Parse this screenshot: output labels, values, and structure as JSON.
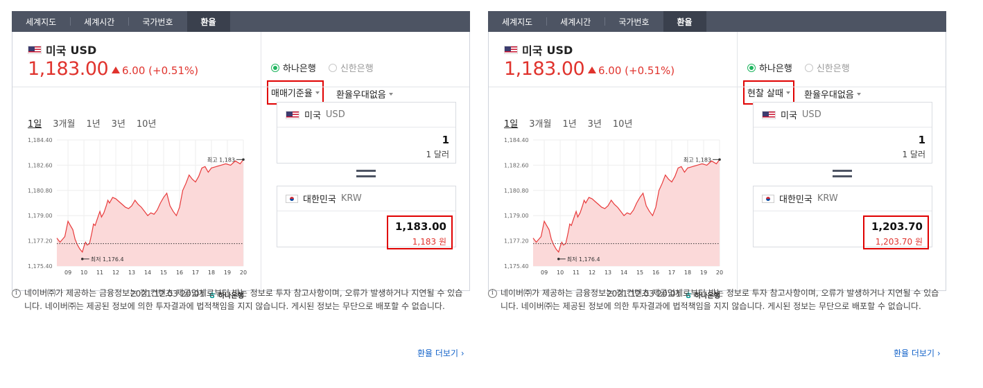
{
  "panels": [
    {
      "tabs": [
        "세계지도",
        "세계시간",
        "국가번호",
        "환율"
      ],
      "currency": {
        "name": "미국",
        "code": "USD"
      },
      "rate": "1,183.00",
      "change": "6.00 (+0.51%)",
      "banks": [
        "하나은행",
        "신한은행"
      ],
      "rate_type": "매매기준율",
      "preferential": "환율우대없음",
      "periods": [
        "1일",
        "3개월",
        "1년",
        "3년",
        "10년"
      ],
      "from": {
        "name": "미국",
        "code": "USD",
        "amount": "1",
        "amount_text": "1 달러"
      },
      "to": {
        "name": "대한민국",
        "code": "KRW",
        "amount": "1,183.00",
        "amount_text": "1,183 원"
      },
      "timestamp": "2021.12.03 20:01",
      "bank_logo": "하나은행",
      "notice": "네이버㈜가 제공하는 금융정보는 각 컨텐츠 제공업체로부터 받는 정보로 투자 참고사항이며, 오류가 발생하거나 지연될 수 있습니다. 네이버㈜는 제공된 정보에 의한 투자결과에 법적책임을 지지 않습니다. 게시된 정보는 무단으로 배포할 수 없습니다.",
      "more_link": "환율 더보기 ›"
    },
    {
      "tabs": [
        "세계지도",
        "세계시간",
        "국가번호",
        "환율"
      ],
      "currency": {
        "name": "미국",
        "code": "USD"
      },
      "rate": "1,183.00",
      "change": "6.00 (+0.51%)",
      "banks": [
        "하나은행",
        "신한은행"
      ],
      "rate_type": "현찰 살때",
      "preferential": "환율우대없음",
      "periods": [
        "1일",
        "3개월",
        "1년",
        "3년",
        "10년"
      ],
      "from": {
        "name": "미국",
        "code": "USD",
        "amount": "1",
        "amount_text": "1 달러"
      },
      "to": {
        "name": "대한민국",
        "code": "KRW",
        "amount": "1,203.70",
        "amount_text": "1,203.70 원"
      },
      "timestamp": "2021.12.03 20:01",
      "bank_logo": "하나은행",
      "notice": "네이버㈜가 제공하는 금융정보는 각 컨텐츠 제공업체로부터 받는 정보로 투자 참고사항이며, 오류가 발생하거나 지연될 수 있습니다. 네이버㈜는 제공된 정보에 의한 투자결과에 법적책임을 지지 않습니다. 게시된 정보는 무단으로 배포할 수 없습니다.",
      "more_link": "환율 더보기 ›"
    }
  ],
  "chart_data": {
    "type": "area",
    "y_ticks": [
      "1,184.40",
      "1,182.60",
      "1,180.80",
      "1,179.00",
      "1,177.20",
      "1,175.40"
    ],
    "x_ticks": [
      "09",
      "10",
      "11",
      "12",
      "13",
      "14",
      "15",
      "16",
      "17",
      "18",
      "19",
      "20"
    ],
    "ylim": [
      1175.4,
      1184.4
    ],
    "baseline": 1177.0,
    "max_label": "최고 1,183",
    "min_label": "최저 1,176.4",
    "x": [
      8.3,
      8.5,
      8.8,
      9.0,
      9.15,
      9.3,
      9.45,
      9.6,
      9.75,
      9.9,
      10.0,
      10.1,
      10.2,
      10.35,
      10.5,
      10.6,
      10.7,
      10.85,
      11.0,
      11.1,
      11.25,
      11.4,
      11.5,
      11.6,
      11.8,
      12.0,
      12.2,
      12.4,
      12.6,
      12.8,
      13.0,
      13.2,
      13.4,
      13.6,
      13.8,
      14.0,
      14.2,
      14.4,
      14.6,
      14.8,
      15.0,
      15.2,
      15.4,
      15.6,
      15.8,
      16.0,
      16.2,
      16.4,
      16.6,
      16.8,
      17.0,
      17.2,
      17.4,
      17.6,
      17.8,
      18.0,
      18.3,
      18.6,
      18.9,
      19.2,
      19.5,
      19.8,
      20.0
    ],
    "y": [
      1177.4,
      1177.1,
      1177.5,
      1178.6,
      1178.3,
      1178.0,
      1177.3,
      1176.9,
      1176.6,
      1176.4,
      1176.8,
      1177.1,
      1176.9,
      1177.0,
      1177.8,
      1178.4,
      1178.3,
      1178.8,
      1179.3,
      1178.9,
      1179.2,
      1179.7,
      1180.1,
      1179.9,
      1180.3,
      1180.2,
      1180.0,
      1179.8,
      1179.6,
      1179.5,
      1179.7,
      1180.1,
      1179.8,
      1179.6,
      1179.3,
      1179.0,
      1179.2,
      1179.1,
      1179.4,
      1179.9,
      1180.3,
      1180.6,
      1179.7,
      1179.3,
      1179.0,
      1179.6,
      1180.8,
      1181.3,
      1181.9,
      1181.6,
      1181.4,
      1181.8,
      1182.4,
      1182.5,
      1182.1,
      1182.4,
      1182.5,
      1182.6,
      1182.7,
      1182.6,
      1182.9,
      1182.7,
      1183.0
    ],
    "colors": {
      "line": "#e8393a",
      "fill": "#fbd9d9",
      "baseline": "#333333"
    }
  }
}
